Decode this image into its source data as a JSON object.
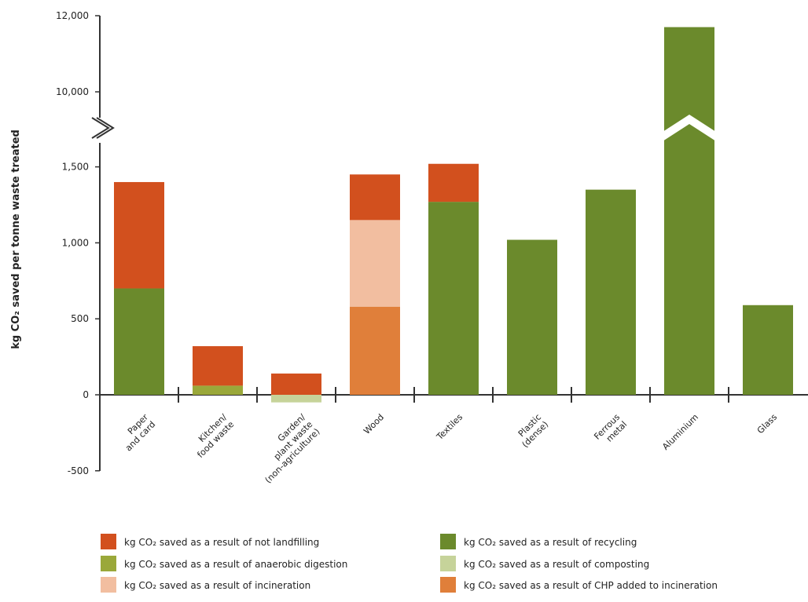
{
  "chart_data": {
    "type": "bar",
    "stacked": true,
    "ylabel": "kg CO₂ saved per tonne waste treated",
    "y_ticks": [
      "12,000",
      "10,000",
      "1,500",
      "1,000",
      "500",
      "0",
      "-500"
    ],
    "axis_break": {
      "lower_max": 1800,
      "upper_min": 9500
    },
    "ylim": [
      -500,
      12000
    ],
    "categories": [
      {
        "lines": [
          "Paper",
          "and card"
        ]
      },
      {
        "lines": [
          "Kitchen/",
          "food waste"
        ]
      },
      {
        "lines": [
          "Garden/",
          "plant waste",
          "(non-agriculture)"
        ]
      },
      {
        "lines": [
          "Wood"
        ]
      },
      {
        "lines": [
          "Textiles"
        ]
      },
      {
        "lines": [
          "Plastic",
          "(dense)"
        ]
      },
      {
        "lines": [
          "Ferrous",
          "metal"
        ]
      },
      {
        "lines": [
          "Aluminium"
        ]
      },
      {
        "lines": [
          "Glass"
        ]
      }
    ],
    "series": [
      {
        "key": "recycling",
        "name": "kg CO₂ saved as a result of recycling",
        "color": "#6b8a2c",
        "values": [
          700,
          0,
          0,
          0,
          1270,
          1020,
          1350,
          11700,
          590
        ]
      },
      {
        "key": "ad",
        "name": "kg CO₂ saved as a result of anaerobic digestion",
        "color": "#9aa83a",
        "values": [
          0,
          60,
          0,
          0,
          0,
          0,
          0,
          0,
          0
        ]
      },
      {
        "key": "composting",
        "name": "kg CO₂ saved as a result of composting",
        "color": "#c6d39a",
        "values": [
          0,
          0,
          -50,
          0,
          0,
          0,
          0,
          0,
          0
        ]
      },
      {
        "key": "chp",
        "name": "kg CO₂ saved as a result of CHP added to incineration",
        "color": "#e07f3a",
        "values": [
          0,
          0,
          0,
          580,
          0,
          0,
          0,
          0,
          0
        ]
      },
      {
        "key": "incineration",
        "name": "kg CO₂ saved as a result of incineration",
        "color": "#f2bea0",
        "values": [
          0,
          0,
          0,
          570,
          0,
          0,
          0,
          0,
          0
        ]
      },
      {
        "key": "landfill",
        "name": "kg CO₂ saved as a result of not landfilling",
        "color": "#d2501e",
        "values": [
          700,
          260,
          140,
          300,
          250,
          0,
          0,
          0,
          0
        ]
      }
    ],
    "legend": {
      "position": "bottom",
      "rows": [
        [
          "landfill",
          "recycling"
        ],
        [
          "ad",
          "composting"
        ],
        [
          "incineration",
          "chp"
        ]
      ]
    },
    "grid": false
  }
}
